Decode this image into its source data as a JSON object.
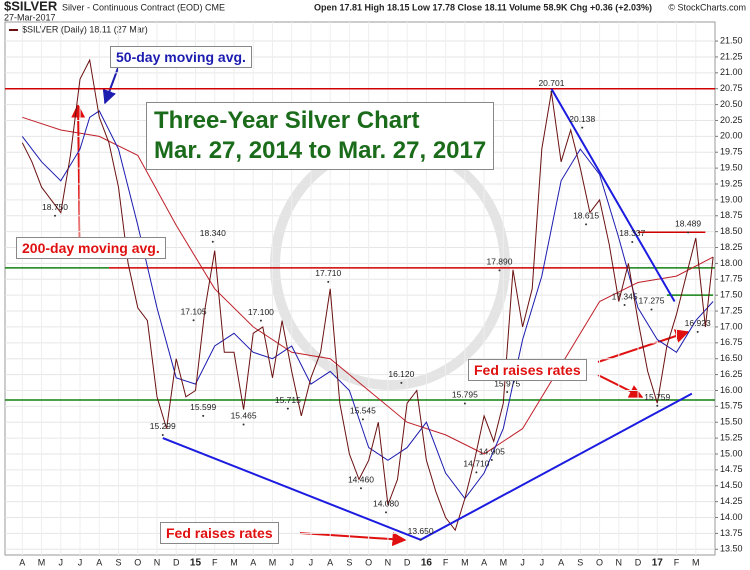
{
  "chart_data": {
    "type": "line",
    "title": "$SILVER",
    "subtitle": "Silver - Continuous Contract (EOD) CME",
    "date": "27-Mar-2017",
    "quote": "Open 17.81 High 18.15 Low 17.78 Close 18.11 Volume 58.9K Chg +0.36 (+2.03%)",
    "source": "© StockCharts.com",
    "legend_label": "$SILVER (Daily) 18.11 (27 Mar)",
    "annotations": {
      "ma50": "50-day moving avg.",
      "ma200": "200-day moving avg.",
      "headline": "Three-Year Silver Chart",
      "period": "Mar. 27, 2014 to Mar. 27, 2017",
      "fed1": "Fed raises rates",
      "fed2": "Fed raises rates"
    },
    "xlim": [
      -0.9,
      36.0
    ],
    "ylim": [
      13.41,
      21.8
    ],
    "grid": true,
    "xticks": [
      {
        "value": 0,
        "label": "A"
      },
      {
        "value": 1,
        "label": "M"
      },
      {
        "value": 2,
        "label": "J"
      },
      {
        "value": 3,
        "label": "J"
      },
      {
        "value": 4,
        "label": "A"
      },
      {
        "value": 5,
        "label": "S"
      },
      {
        "value": 6,
        "label": "O"
      },
      {
        "value": 7,
        "label": "N"
      },
      {
        "value": 8,
        "label": "D"
      },
      {
        "value": 9,
        "label": "15"
      },
      {
        "value": 10,
        "label": "F"
      },
      {
        "value": 11,
        "label": "M"
      },
      {
        "value": 12,
        "label": "A"
      },
      {
        "value": 13,
        "label": "M"
      },
      {
        "value": 14,
        "label": "J"
      },
      {
        "value": 15,
        "label": "J"
      },
      {
        "value": 16,
        "label": "A"
      },
      {
        "value": 17,
        "label": "S"
      },
      {
        "value": 18,
        "label": "O"
      },
      {
        "value": 19,
        "label": "N"
      },
      {
        "value": 20,
        "label": "D"
      },
      {
        "value": 21,
        "label": "16"
      },
      {
        "value": 22,
        "label": "F"
      },
      {
        "value": 23,
        "label": "M"
      },
      {
        "value": 24,
        "label": "A"
      },
      {
        "value": 25,
        "label": "M"
      },
      {
        "value": 26,
        "label": "J"
      },
      {
        "value": 27,
        "label": "J"
      },
      {
        "value": 28,
        "label": "A"
      },
      {
        "value": 29,
        "label": "S"
      },
      {
        "value": 30,
        "label": "O"
      },
      {
        "value": 31,
        "label": "N"
      },
      {
        "value": 32,
        "label": "D"
      },
      {
        "value": 33,
        "label": "17"
      },
      {
        "value": 34,
        "label": "F"
      },
      {
        "value": 35,
        "label": "M"
      }
    ],
    "yticks": [
      {
        "value": 13.5,
        "label": "13.50"
      },
      {
        "value": 13.75,
        "label": "13.75"
      },
      {
        "value": 14,
        "label": "14.00"
      },
      {
        "value": 14.25,
        "label": "14.25"
      },
      {
        "value": 14.5,
        "label": "14.50"
      },
      {
        "value": 14.75,
        "label": "14.75"
      },
      {
        "value": 15,
        "label": "15.00"
      },
      {
        "value": 15.25,
        "label": "15.25"
      },
      {
        "value": 15.5,
        "label": "15.50"
      },
      {
        "value": 15.75,
        "label": "15.75"
      },
      {
        "value": 16,
        "label": "16.00"
      },
      {
        "value": 16.25,
        "label": "16.25"
      },
      {
        "value": 16.5,
        "label": "16.50"
      },
      {
        "value": 16.75,
        "label": "16.75"
      },
      {
        "value": 17,
        "label": "17.00"
      },
      {
        "value": 17.25,
        "label": "17.25"
      },
      {
        "value": 17.5,
        "label": "17.50"
      },
      {
        "value": 17.75,
        "label": "17.75"
      },
      {
        "value": 18,
        "label": "18.00"
      },
      {
        "value": 18.25,
        "label": "18.25"
      },
      {
        "value": 18.5,
        "label": "18.50"
      },
      {
        "value": 18.75,
        "label": "18.75"
      },
      {
        "value": 19,
        "label": "19.00"
      },
      {
        "value": 19.25,
        "label": "19.25"
      },
      {
        "value": 19.5,
        "label": "19.50"
      },
      {
        "value": 19.75,
        "label": "19.75"
      },
      {
        "value": 20,
        "label": "20.00"
      },
      {
        "value": 20.25,
        "label": "20.25"
      },
      {
        "value": 20.5,
        "label": "20.50"
      },
      {
        "value": 20.75,
        "label": "20.75"
      },
      {
        "value": 21,
        "label": "21.00"
      },
      {
        "value": 21.25,
        "label": "21.25"
      },
      {
        "value": 21.5,
        "label": "21.50"
      }
    ],
    "series": [
      {
        "name": "$SILVER",
        "color": "#6b1010",
        "width": 1,
        "x": [
          0,
          0.5,
          1,
          1.5,
          2,
          2.5,
          3,
          3.5,
          4,
          4.5,
          5,
          5.5,
          6,
          6.5,
          7,
          7.5,
          8,
          8.5,
          9,
          9.5,
          10,
          10.5,
          11,
          11.5,
          12,
          12.5,
          13,
          13.5,
          14,
          14.5,
          15,
          15.5,
          16,
          16.5,
          17,
          17.5,
          18,
          18.5,
          19,
          19.5,
          20,
          20.5,
          21,
          21.5,
          22,
          22.5,
          23,
          23.5,
          24,
          24.5,
          25,
          25.5,
          26,
          26.5,
          27,
          27.5,
          28,
          28.5,
          29,
          29.5,
          30,
          30.5,
          31,
          31.5,
          32,
          32.5,
          33,
          33.5,
          34,
          34.5,
          35,
          35.5,
          35.9
        ],
        "values": [
          19.9,
          19.6,
          19.2,
          19.0,
          18.8,
          19.7,
          20.9,
          21.2,
          20.3,
          19.9,
          19.2,
          18.0,
          17.3,
          17.1,
          15.9,
          15.4,
          16.5,
          15.9,
          16.0,
          17.3,
          18.2,
          16.6,
          16.6,
          15.7,
          16.9,
          17.0,
          16.2,
          17.1,
          16.3,
          15.6,
          16.2,
          16.6,
          17.6,
          15.8,
          15.0,
          14.6,
          14.9,
          15.5,
          14.2,
          14.6,
          15.8,
          16.0,
          14.9,
          14.4,
          14.0,
          13.8,
          14.3,
          14.9,
          15.6,
          15.2,
          15.8,
          17.9,
          17.0,
          17.6,
          19.8,
          20.7,
          19.6,
          20.1,
          19.5,
          18.8,
          19.0,
          18.3,
          17.4,
          18.0,
          17.1,
          16.3,
          15.8,
          16.7,
          17.2,
          17.8,
          18.4,
          17.0,
          18.1
        ]
      },
      {
        "name": "50-day MA",
        "color": "#1c1cb0",
        "width": 1,
        "x": [
          0,
          1,
          2,
          3,
          3.5,
          4,
          5,
          6,
          7,
          8,
          9,
          10,
          11,
          12,
          13,
          14,
          15,
          16,
          17,
          18,
          19,
          20,
          21,
          22,
          23,
          24,
          25,
          26,
          27,
          28,
          29,
          30,
          31,
          32,
          33,
          34,
          35,
          35.9
        ],
        "values": [
          20.0,
          19.6,
          19.3,
          19.8,
          20.3,
          20.4,
          19.8,
          18.6,
          17.3,
          16.2,
          16.1,
          16.7,
          16.9,
          16.6,
          16.5,
          16.7,
          16.1,
          16.3,
          16.0,
          15.1,
          14.9,
          15.1,
          15.5,
          14.7,
          14.3,
          14.7,
          15.4,
          16.8,
          17.8,
          19.3,
          19.8,
          19.4,
          18.4,
          17.3,
          16.8,
          16.6,
          17.1,
          17.4
        ]
      },
      {
        "name": "200-day MA",
        "color": "#c0202a",
        "width": 1,
        "x": [
          0,
          2,
          4,
          6,
          8,
          10,
          12,
          14,
          16,
          18,
          20,
          22,
          24,
          26,
          28,
          30,
          32,
          34,
          35.9
        ],
        "values": [
          20.3,
          20.1,
          20.0,
          19.7,
          18.6,
          17.6,
          17.0,
          16.6,
          16.5,
          16.0,
          15.5,
          15.3,
          15.0,
          15.4,
          16.4,
          17.4,
          17.7,
          17.8,
          18.1
        ]
      }
    ],
    "reference_lines": [
      {
        "value": 20.75,
        "from": -0.9,
        "to": 36.0,
        "color": "#d00000"
      },
      {
        "value": 17.93,
        "from": 4.5,
        "to": 31.5,
        "color": "#d00000"
      },
      {
        "value": 17.93,
        "from": -0.9,
        "to": 4.5,
        "color": "#108010"
      },
      {
        "value": 17.93,
        "from": 31.5,
        "to": 36.0,
        "color": "#108010"
      },
      {
        "value": 15.85,
        "from": -0.9,
        "to": 36.0,
        "color": "#108010"
      },
      {
        "value": 18.49,
        "from": 32.0,
        "to": 35.5,
        "color": "#d00000"
      },
      {
        "value": 17.5,
        "from": 33.5,
        "to": 35.9,
        "color": "#108010"
      }
    ],
    "trend_lines": [
      {
        "color": "#1c1ce0",
        "x": [
          7.3,
          20.7,
          34.8
        ],
        "values": [
          15.25,
          13.65,
          15.95
        ]
      },
      {
        "color": "#1c1ce0",
        "x": [
          27.5,
          33.9
        ],
        "values": [
          20.75,
          17.4
        ]
      }
    ],
    "price_labels": [
      {
        "x": 1.7,
        "value": 18.75,
        "label": "18.750"
      },
      {
        "x": 9.9,
        "value": 18.34,
        "label": "18.340"
      },
      {
        "x": 8.9,
        "value": 17.105,
        "label": "17.105"
      },
      {
        "x": 12.4,
        "value": 17.1,
        "label": "17.100"
      },
      {
        "x": 15.9,
        "value": 17.71,
        "label": "17.710"
      },
      {
        "x": 7.3,
        "value": 15.299,
        "label": "15.299"
      },
      {
        "x": 9.4,
        "value": 15.599,
        "label": "15.599"
      },
      {
        "x": 11.5,
        "value": 15.465,
        "label": "15.465"
      },
      {
        "x": 13.8,
        "value": 15.715,
        "label": "15.715"
      },
      {
        "x": 17.7,
        "value": 15.545,
        "label": "15.545"
      },
      {
        "x": 19.7,
        "value": 16.12,
        "label": "16.120"
      },
      {
        "x": 17.6,
        "value": 14.46,
        "label": "14.460"
      },
      {
        "x": 18.9,
        "value": 14.08,
        "label": "14.080"
      },
      {
        "x": 20.7,
        "value": 13.65,
        "label": "13.650"
      },
      {
        "x": 23.0,
        "value": 15.795,
        "label": "15.795"
      },
      {
        "x": 25.2,
        "value": 15.975,
        "label": "15.975"
      },
      {
        "x": 24.4,
        "value": 14.905,
        "label": "14.905"
      },
      {
        "x": 23.6,
        "value": 14.71,
        "label": "14.710"
      },
      {
        "x": 24.8,
        "value": 17.89,
        "label": "17.890"
      },
      {
        "x": 27.5,
        "value": 20.701,
        "label": "20.701"
      },
      {
        "x": 29.1,
        "value": 20.138,
        "label": "20.138"
      },
      {
        "x": 29.3,
        "value": 18.615,
        "label": "18.615"
      },
      {
        "x": 31.7,
        "value": 18.337,
        "label": "18.337"
      },
      {
        "x": 31.3,
        "value": 17.345,
        "label": "17.345"
      },
      {
        "x": 32.7,
        "value": 17.275,
        "label": "17.275"
      },
      {
        "x": 34.6,
        "value": 18.489,
        "label": "18.489"
      },
      {
        "x": 35.1,
        "value": 16.923,
        "label": "16.923"
      },
      {
        "x": 33.0,
        "value": 15.759,
        "label": "15.759"
      }
    ]
  }
}
